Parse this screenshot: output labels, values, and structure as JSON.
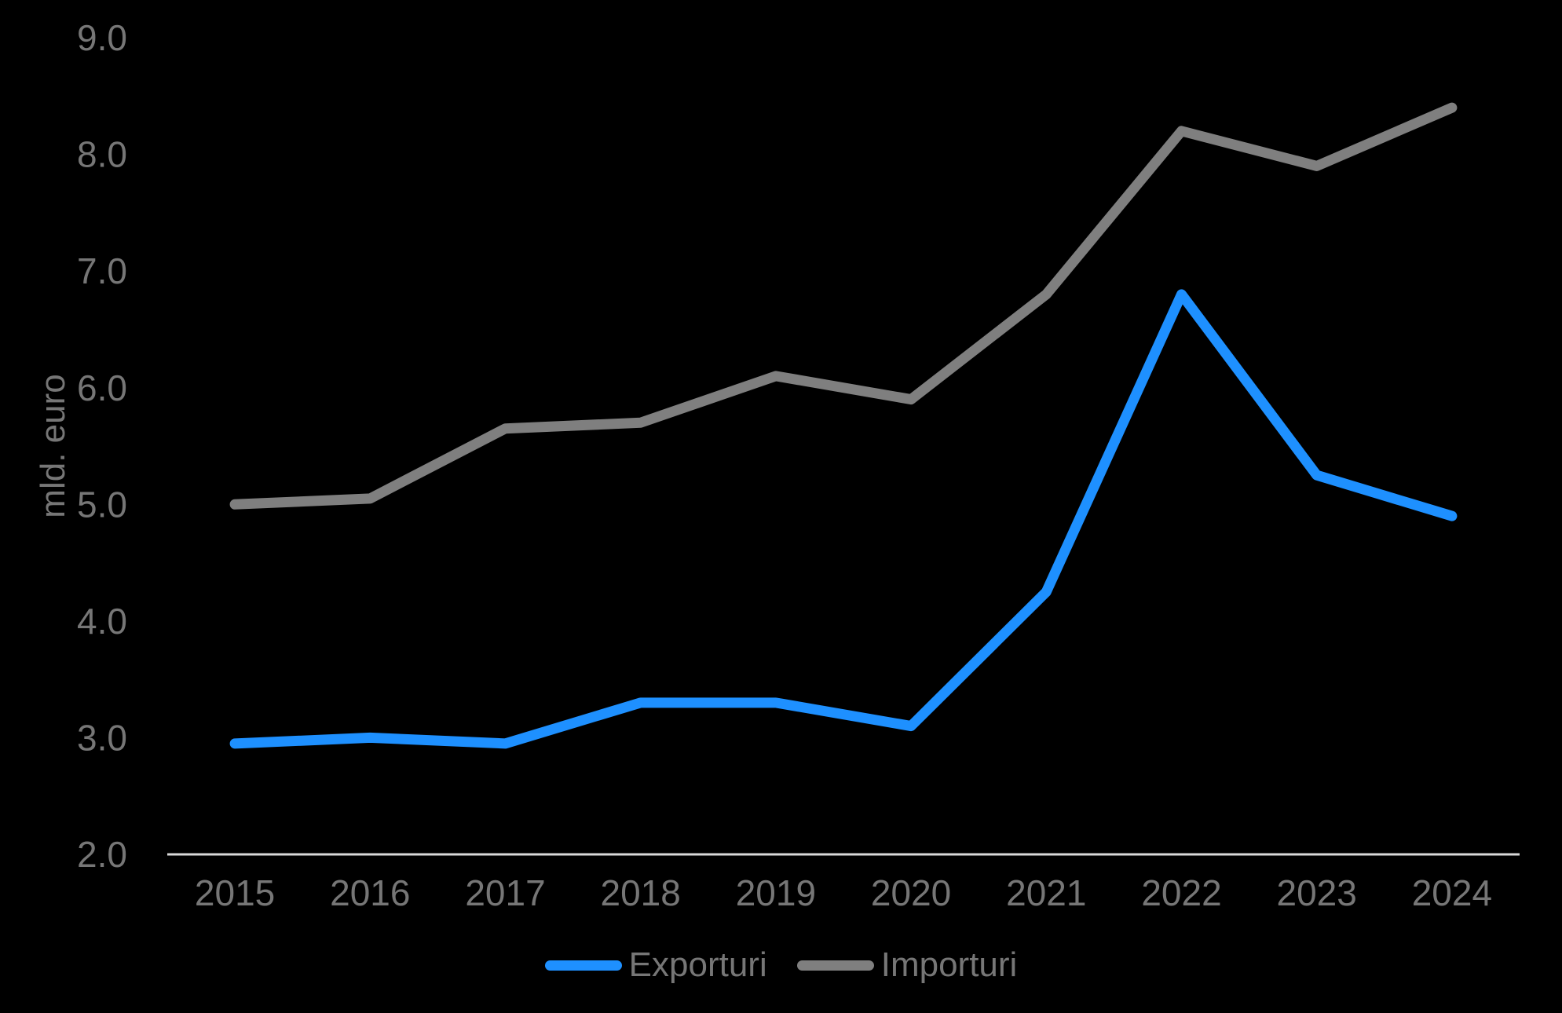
{
  "chart_data": {
    "type": "line",
    "title": "",
    "xlabel": "",
    "ylabel": "mld. euro",
    "categories": [
      "2015",
      "2016",
      "2017",
      "2018",
      "2019",
      "2020",
      "2021",
      "2022",
      "2023",
      "2024"
    ],
    "series": [
      {
        "name": "Exporturi",
        "color": "#1E90FF",
        "values": [
          2.95,
          3.0,
          2.95,
          3.3,
          3.3,
          3.1,
          4.25,
          6.8,
          5.25,
          4.9
        ]
      },
      {
        "name": "Importuri",
        "color": "#7F7F7F",
        "values": [
          5.0,
          5.05,
          5.65,
          5.7,
          6.1,
          5.9,
          6.8,
          8.2,
          7.9,
          8.4
        ]
      }
    ],
    "ylim": [
      2.0,
      9.0
    ],
    "yticks": [
      {
        "value": 2.0,
        "label": "2.0"
      },
      {
        "value": 3.0,
        "label": "3.0"
      },
      {
        "value": 4.0,
        "label": "4.0"
      },
      {
        "value": 5.0,
        "label": "5.0"
      },
      {
        "value": 6.0,
        "label": "6.0"
      },
      {
        "value": 7.0,
        "label": "7.0"
      },
      {
        "value": 8.0,
        "label": "8.0"
      },
      {
        "value": 9.0,
        "label": "9.0"
      }
    ],
    "grid": false,
    "legend_position": "bottom-center",
    "colors": {
      "background": "#000000",
      "axis_line": "#D9D9D9",
      "tick_label": "#767676"
    }
  }
}
